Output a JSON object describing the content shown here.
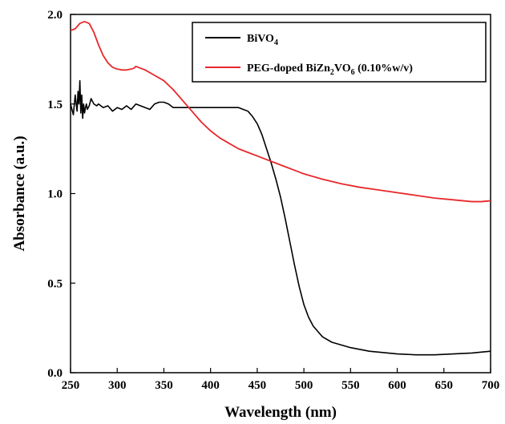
{
  "chart_data": {
    "type": "line",
    "title": "",
    "xlabel": "Wavelength (nm)",
    "ylabel": "Absorbance (a.u.)",
    "xlim": [
      250,
      700
    ],
    "ylim": [
      0.0,
      2.0
    ],
    "xticks": [
      250,
      300,
      350,
      400,
      450,
      500,
      550,
      600,
      650,
      700
    ],
    "xtick_labels": [
      "250",
      "300",
      "350",
      "400",
      "450",
      "500",
      "550",
      "600",
      "650",
      "700"
    ],
    "yticks": [
      0.0,
      0.5,
      1.0,
      1.5,
      2.0
    ],
    "ytick_labels": [
      "0.0",
      "0.5",
      "1.0",
      "1.5",
      "2.0"
    ],
    "grid": false,
    "legend_position": "top-right",
    "series": [
      {
        "name": "BiVO4",
        "legend_label": {
          "main": "BiVO",
          "sub": "4",
          "rest": ""
        },
        "color": "#000000",
        "x": [
          250,
          253,
          255,
          257,
          258,
          259,
          260,
          261,
          262,
          263,
          264,
          265,
          266,
          267,
          268,
          270,
          272,
          275,
          278,
          280,
          285,
          290,
          295,
          300,
          305,
          310,
          315,
          320,
          325,
          330,
          335,
          340,
          345,
          350,
          355,
          360,
          370,
          380,
          390,
          400,
          410,
          420,
          430,
          435,
          440,
          445,
          450,
          455,
          460,
          465,
          470,
          475,
          480,
          485,
          490,
          495,
          500,
          505,
          510,
          515,
          520,
          530,
          540,
          550,
          560,
          570,
          580,
          590,
          600,
          620,
          640,
          660,
          680,
          700
        ],
        "y": [
          1.5,
          1.44,
          1.55,
          1.46,
          1.57,
          1.5,
          1.63,
          1.45,
          1.55,
          1.42,
          1.5,
          1.45,
          1.48,
          1.5,
          1.47,
          1.49,
          1.53,
          1.5,
          1.49,
          1.5,
          1.48,
          1.49,
          1.46,
          1.48,
          1.47,
          1.49,
          1.47,
          1.5,
          1.49,
          1.48,
          1.47,
          1.5,
          1.51,
          1.51,
          1.5,
          1.48,
          1.48,
          1.48,
          1.48,
          1.48,
          1.48,
          1.48,
          1.48,
          1.47,
          1.46,
          1.43,
          1.39,
          1.33,
          1.25,
          1.17,
          1.08,
          0.98,
          0.86,
          0.73,
          0.6,
          0.48,
          0.38,
          0.31,
          0.26,
          0.23,
          0.2,
          0.17,
          0.155,
          0.14,
          0.13,
          0.12,
          0.115,
          0.11,
          0.105,
          0.1,
          0.1,
          0.105,
          0.11,
          0.12
        ]
      },
      {
        "name": "PEG-doped BiZn2VO6 (0.10%w/v)",
        "legend_label": {
          "main": "PEG-doped  BiZn",
          "sub": "2",
          "mid": "VO",
          "sub2": "6",
          "rest": " (0.10%w/v)"
        },
        "color": "#e8282c",
        "x": [
          250,
          255,
          260,
          265,
          270,
          275,
          280,
          285,
          290,
          295,
          300,
          305,
          310,
          315,
          318,
          320,
          325,
          330,
          340,
          350,
          360,
          370,
          380,
          390,
          400,
          410,
          420,
          430,
          440,
          450,
          460,
          470,
          480,
          490,
          500,
          520,
          540,
          560,
          580,
          600,
          620,
          640,
          660,
          680,
          690,
          700
        ],
        "y": [
          1.91,
          1.92,
          1.95,
          1.96,
          1.95,
          1.9,
          1.83,
          1.77,
          1.73,
          1.705,
          1.695,
          1.69,
          1.69,
          1.695,
          1.7,
          1.71,
          1.7,
          1.69,
          1.66,
          1.63,
          1.58,
          1.52,
          1.46,
          1.4,
          1.35,
          1.31,
          1.28,
          1.25,
          1.23,
          1.21,
          1.19,
          1.17,
          1.15,
          1.13,
          1.11,
          1.08,
          1.055,
          1.035,
          1.02,
          1.005,
          0.99,
          0.975,
          0.965,
          0.955,
          0.955,
          0.96
        ]
      }
    ]
  }
}
